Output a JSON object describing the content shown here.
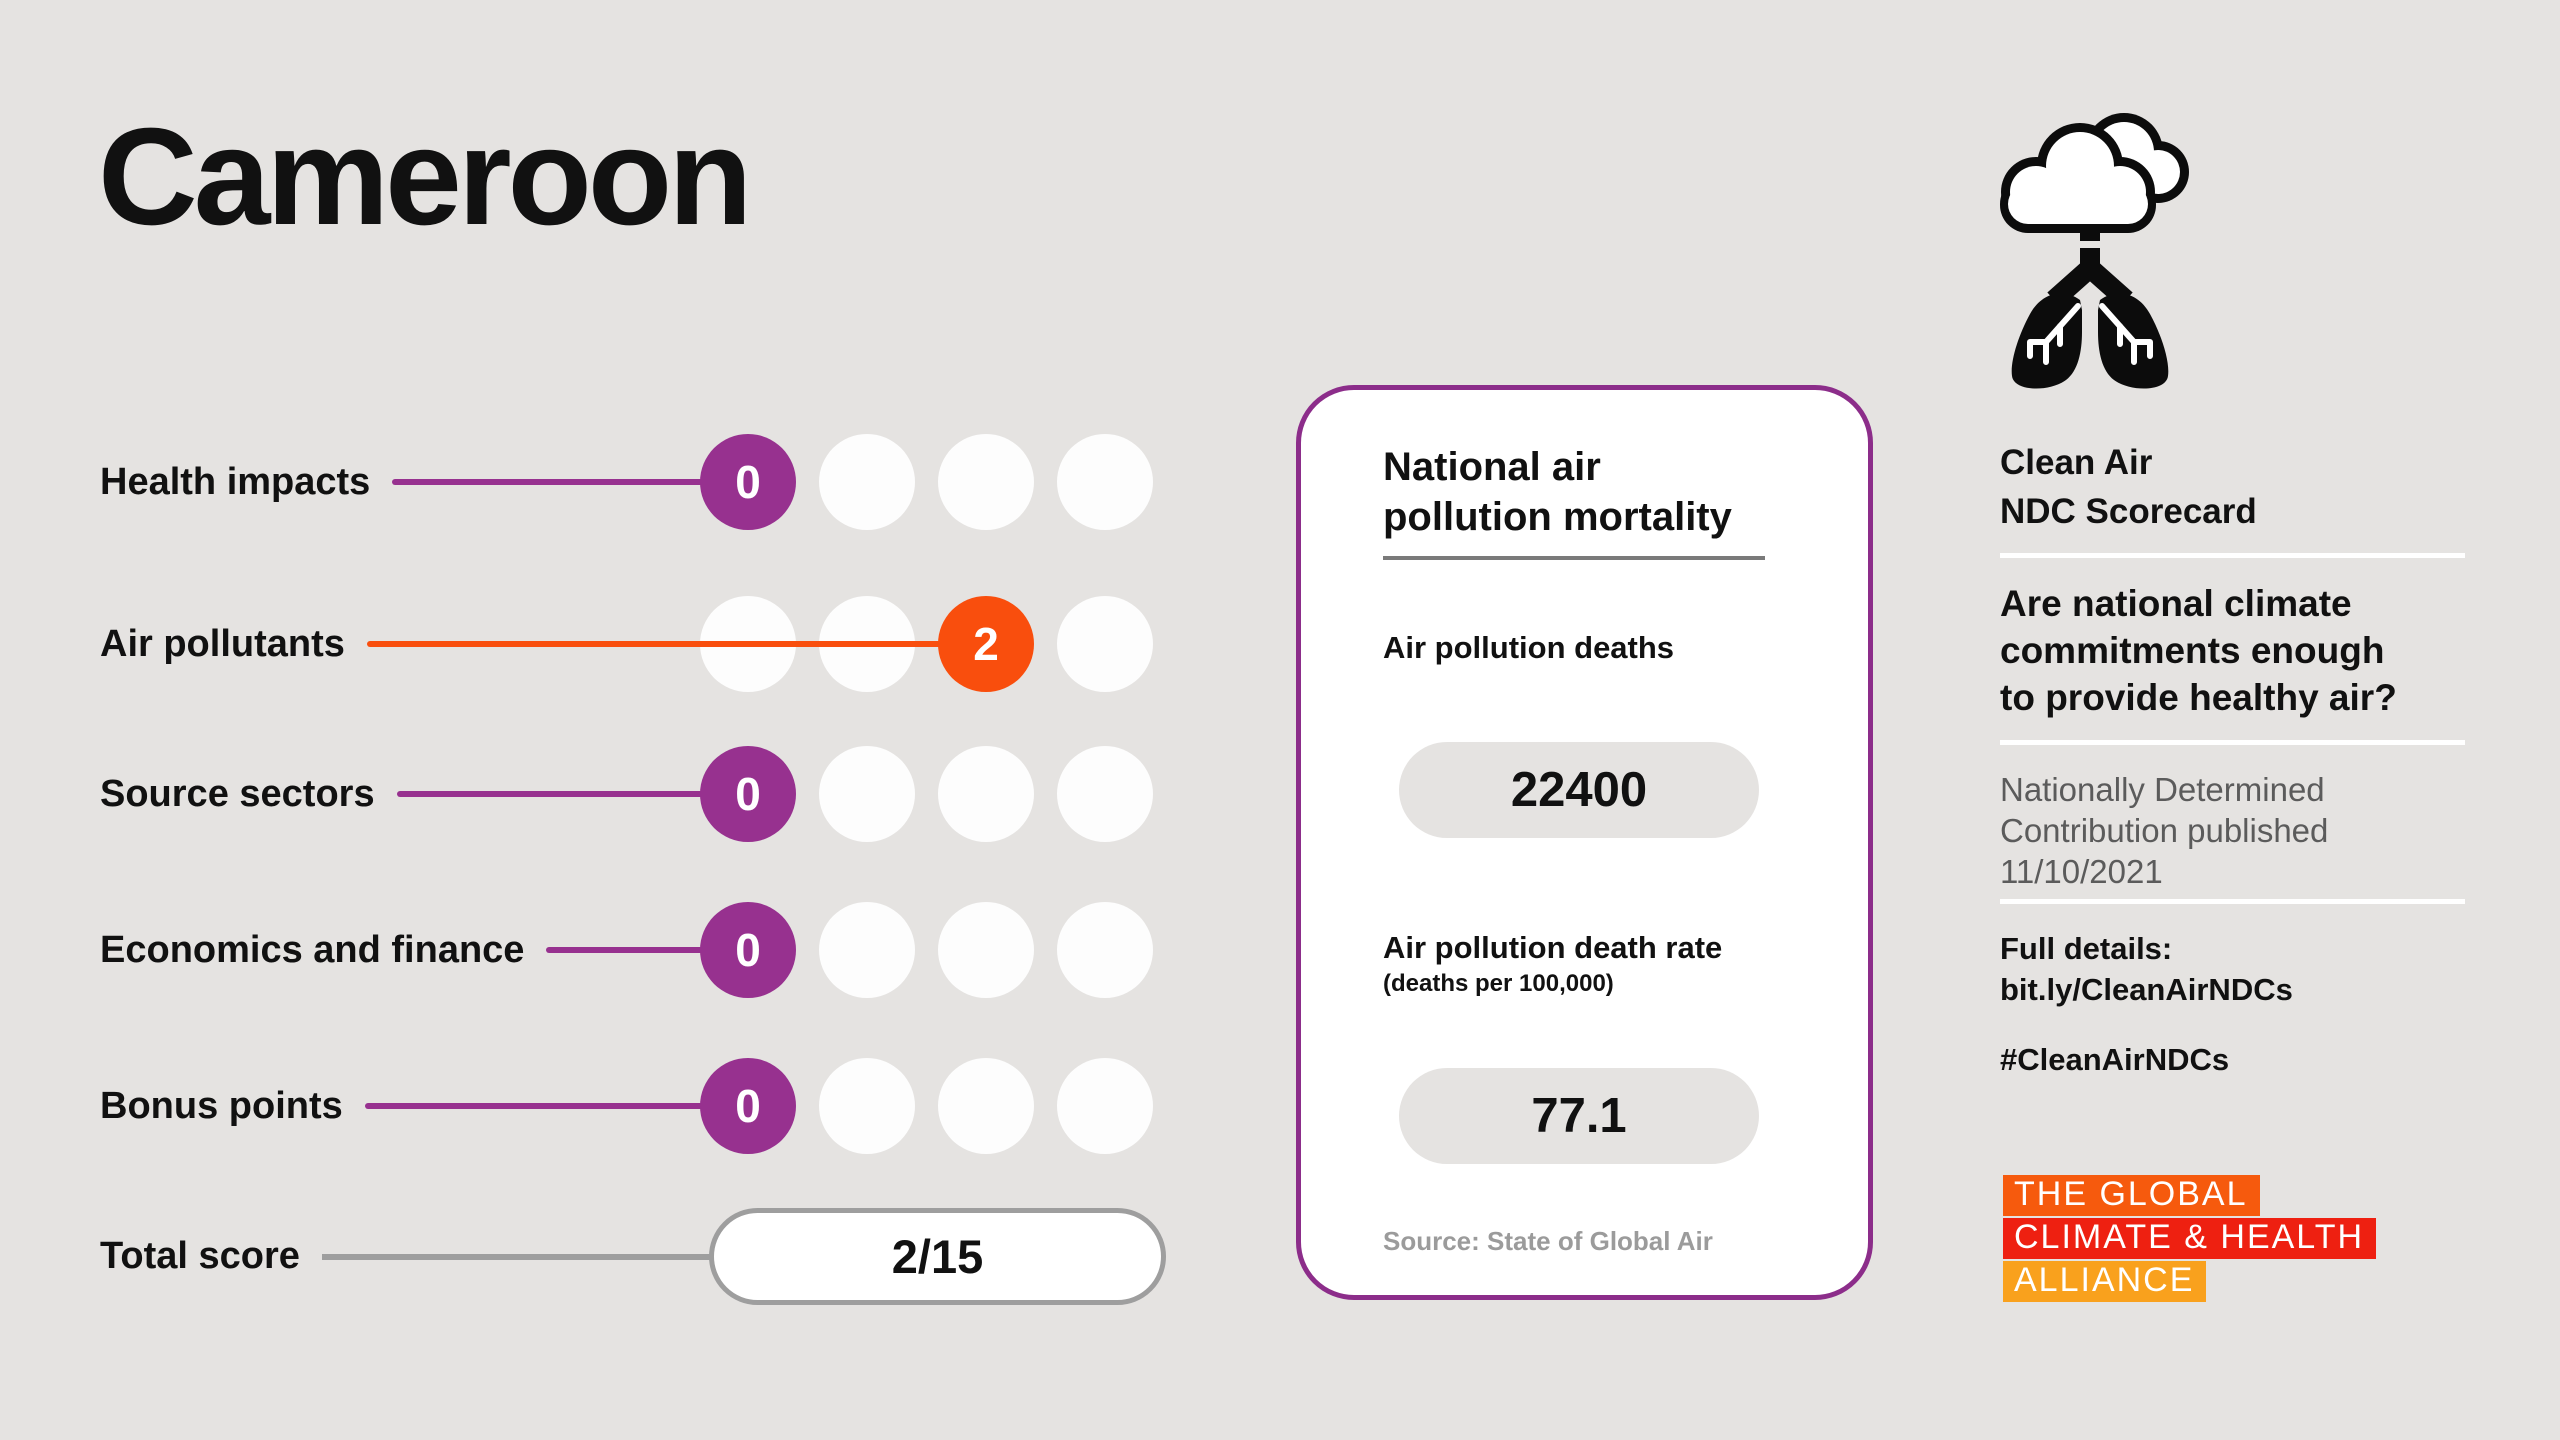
{
  "page": {
    "title": "Cameroon"
  },
  "colors": {
    "background": "#E5E3E1",
    "purple": "#97318F",
    "orange": "#F94E0D",
    "gray_line": "#9E9E9E",
    "card_border": "#8C2D8A",
    "text_gray": "#5B5B5B",
    "source_gray": "#9B9B9B",
    "logo_orange": "#F65A0D",
    "logo_red": "#EE2011",
    "logo_amber": "#F9A11D"
  },
  "scorecard": {
    "rows": [
      {
        "label": "Health impacts",
        "score": 0,
        "dots": 4,
        "color": "purple"
      },
      {
        "label": "Air pollutants",
        "score": 2,
        "dots": 4,
        "color": "orange"
      },
      {
        "label": "Source sectors",
        "score": 0,
        "dots": 4,
        "color": "purple"
      },
      {
        "label": "Economics and finance",
        "score": 0,
        "dots": 4,
        "color": "purple"
      },
      {
        "label": "Bonus points",
        "score": 0,
        "dots": 4,
        "color": "purple"
      }
    ],
    "total": {
      "label": "Total score",
      "value": "2/15"
    }
  },
  "mortality_card": {
    "title": "National air\npollution mortality",
    "deaths_label": "Air pollution deaths",
    "deaths_value": "22400",
    "rate_label": "Air pollution death rate",
    "rate_sublabel": "(deaths per 100,000)",
    "rate_value": "77.1",
    "source": "Source: State of Global Air"
  },
  "sidebar": {
    "icon": "cloud-lungs-icon",
    "heading": "Clean Air\nNDC Scorecard",
    "question": "Are national climate\ncommitments enough\nto provide healthy air?",
    "ndc_published": "Nationally Determined\nContribution published\n11/10/2021",
    "full_details_label": "Full details:",
    "full_details_link": "bit.ly/CleanAirNDCs",
    "hashtag": "#CleanAirNDCs",
    "logo_lines": [
      {
        "text": "THE GLOBAL",
        "bg": "#F65A0D"
      },
      {
        "text": "CLIMATE & HEALTH",
        "bg": "#EE2011"
      },
      {
        "text": "ALLIANCE",
        "bg": "#F9A11D"
      }
    ]
  },
  "chart_data": {
    "type": "table",
    "title": "Cameroon — Clean Air NDC Scorecard",
    "categories": [
      "Health impacts",
      "Air pollutants",
      "Source sectors",
      "Economics and finance",
      "Bonus points"
    ],
    "values": [
      0,
      2,
      0,
      0,
      0
    ],
    "max_score_per_category": 3,
    "total_score": "2/15",
    "related_stats": {
      "air_pollution_deaths": 22400,
      "air_pollution_death_rate_per_100k": 77.1,
      "stats_source": "State of Global Air"
    },
    "legend_position": "none",
    "grid": false
  }
}
